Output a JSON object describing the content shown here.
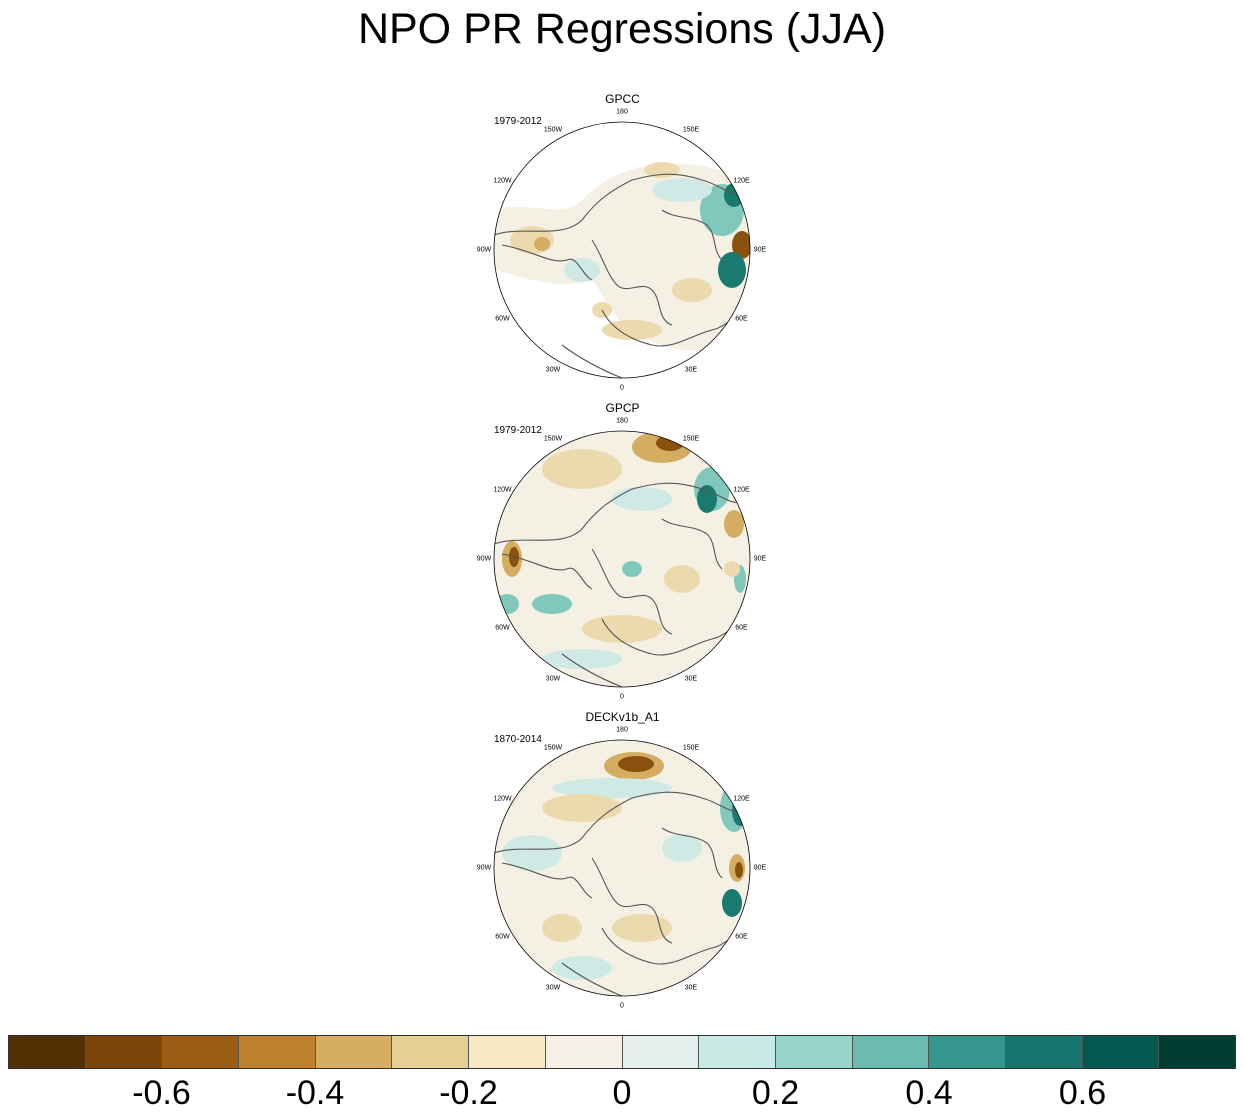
{
  "title": "NPO PR Regressions (JJA)",
  "panels": [
    {
      "name": "GPCC",
      "period": "1979-2012",
      "mask_ocean": true
    },
    {
      "name": "GPCP",
      "period": "1979-2012",
      "mask_ocean": false
    },
    {
      "name": "DECKv1b_A1",
      "period": "1870-2014",
      "mask_ocean": false
    }
  ],
  "longitude_labels": [
    "180",
    "150E",
    "120E",
    "90E",
    "60E",
    "30E",
    "0",
    "30W",
    "60W",
    "90W",
    "120W",
    "150W"
  ],
  "colorbar": {
    "colors": [
      "#543005",
      "#7a4409",
      "#9a5d14",
      "#bf812d",
      "#d4ad63",
      "#e6cf94",
      "#f6e8c3",
      "#f5f1e6",
      "#e2efec",
      "#c7eae5",
      "#97d4c9",
      "#6bbcb0",
      "#35978f",
      "#16756c",
      "#01594f",
      "#003c30"
    ],
    "tick_labels": [
      "-0.6",
      "-0.4",
      "-0.2",
      "0",
      "0.2",
      "0.4",
      "0.6"
    ]
  },
  "palette": {
    "background": "#ffffff",
    "coast": "#555555",
    "near_zero": "#f4f0e4",
    "neg_light": "#ecd9ae",
    "neg_mid": "#d4ad63",
    "neg_dark": "#8a500e",
    "pos_light": "#cfeae4",
    "pos_mid": "#7fc8bb",
    "pos_dark": "#1a7a70"
  }
}
